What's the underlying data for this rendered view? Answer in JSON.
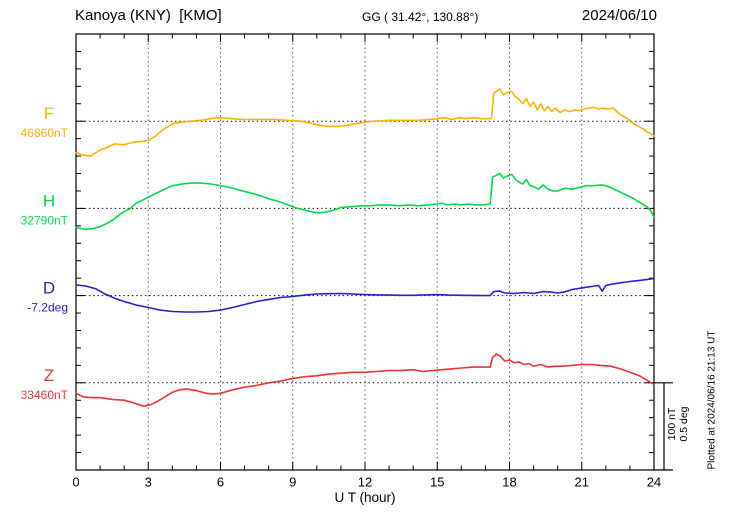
{
  "header": {
    "station": "Kanoya (KNY)  [KMO]",
    "coords": "GG ( 31.42°, 130.88°)",
    "date": "2024/06/10"
  },
  "axes": {
    "x_label": "U T (hour)",
    "x_ticks": [
      0,
      3,
      6,
      9,
      12,
      15,
      18,
      21,
      24
    ]
  },
  "scale_bar": {
    "line1": "100 nT",
    "line2": "0.5 deg"
  },
  "plotted_at": "Plotted at 2024/06/16 21:13 UT",
  "chart_data": {
    "type": "line",
    "title": "Kanoya (KNY) [KMO] magnetogram 2024/06/10",
    "xlabel": "U T (hour)",
    "x_range": [
      0,
      24
    ],
    "x_gridlines": [
      3,
      6,
      9,
      12,
      15,
      18,
      21
    ],
    "grid": "dotted vertical at 3h steps; dotted horizontal baseline per component",
    "legend_position": "left margin, one colored label per component",
    "scale_per_division": {
      "nT": 100,
      "deg": 0.5
    },
    "series": [
      {
        "name": "F",
        "unit": "nT",
        "color": "#FFB000",
        "base_label": "46860nT",
        "base_value": 46860,
        "points": [
          [
            0,
            -36
          ],
          [
            0.3,
            -39
          ],
          [
            0.6,
            -40
          ],
          [
            1,
            -33
          ],
          [
            1.3,
            -30
          ],
          [
            1.6,
            -26
          ],
          [
            2,
            -27
          ],
          [
            2.4,
            -24
          ],
          [
            2.8,
            -23
          ],
          [
            3,
            -22
          ],
          [
            3.3,
            -17
          ],
          [
            3.6,
            -10
          ],
          [
            4,
            -3
          ],
          [
            4.4,
            -1
          ],
          [
            4.8,
            0
          ],
          [
            5.2,
            1
          ],
          [
            5.6,
            3
          ],
          [
            6,
            4
          ],
          [
            6.4,
            3
          ],
          [
            7,
            2
          ],
          [
            7.6,
            2
          ],
          [
            8.2,
            2
          ],
          [
            8.8,
            1
          ],
          [
            9.3,
            0
          ],
          [
            9.7,
            -2
          ],
          [
            10,
            -4
          ],
          [
            10.4,
            -6
          ],
          [
            10.8,
            -6
          ],
          [
            11.2,
            -5
          ],
          [
            11.6,
            -3
          ],
          [
            12,
            -1
          ],
          [
            12.4,
            0
          ],
          [
            13,
            1
          ],
          [
            13.6,
            1
          ],
          [
            14.2,
            1
          ],
          [
            14.7,
            2
          ],
          [
            15,
            3
          ],
          [
            15.3,
            4
          ],
          [
            15.6,
            2
          ],
          [
            15.9,
            4
          ],
          [
            16.2,
            3
          ],
          [
            16.5,
            4
          ],
          [
            16.8,
            3
          ],
          [
            17.1,
            3
          ],
          [
            17.25,
            3
          ],
          [
            17.35,
            32
          ],
          [
            17.5,
            35
          ],
          [
            17.6,
            37
          ],
          [
            17.75,
            30
          ],
          [
            17.9,
            33
          ],
          [
            18.1,
            34
          ],
          [
            18.25,
            28
          ],
          [
            18.4,
            25
          ],
          [
            18.55,
            20
          ],
          [
            18.7,
            26
          ],
          [
            18.85,
            17
          ],
          [
            19,
            22
          ],
          [
            19.15,
            13
          ],
          [
            19.3,
            20
          ],
          [
            19.45,
            12
          ],
          [
            19.6,
            17
          ],
          [
            19.75,
            11
          ],
          [
            19.9,
            15
          ],
          [
            20.1,
            10
          ],
          [
            20.3,
            13
          ],
          [
            20.5,
            11
          ],
          [
            20.7,
            13
          ],
          [
            20.9,
            12
          ],
          [
            21.1,
            14
          ],
          [
            21.3,
            15
          ],
          [
            21.5,
            16
          ],
          [
            21.7,
            14
          ],
          [
            21.9,
            15
          ],
          [
            22.1,
            14
          ],
          [
            22.3,
            15
          ],
          [
            22.5,
            10
          ],
          [
            22.7,
            6
          ],
          [
            22.9,
            3
          ],
          [
            23.1,
            -2
          ],
          [
            23.3,
            -5
          ],
          [
            23.5,
            -8
          ],
          [
            23.7,
            -12
          ],
          [
            23.85,
            -14
          ],
          [
            24,
            -17
          ]
        ]
      },
      {
        "name": "H",
        "unit": "nT",
        "color": "#00DC45",
        "base_label": "32790nT",
        "base_value": 32790,
        "points": [
          [
            0,
            -22
          ],
          [
            0.2,
            -23
          ],
          [
            0.4,
            -24
          ],
          [
            0.7,
            -23
          ],
          [
            1,
            -21
          ],
          [
            1.3,
            -17
          ],
          [
            1.6,
            -12
          ],
          [
            1.9,
            -5
          ],
          [
            2.2,
            -1
          ],
          [
            2.5,
            6
          ],
          [
            2.8,
            10
          ],
          [
            3,
            13
          ],
          [
            3.3,
            17
          ],
          [
            3.6,
            21
          ],
          [
            4,
            26
          ],
          [
            4.4,
            28
          ],
          [
            4.8,
            29
          ],
          [
            5.2,
            29
          ],
          [
            5.6,
            28
          ],
          [
            6,
            26
          ],
          [
            6.4,
            24
          ],
          [
            6.8,
            21
          ],
          [
            7.2,
            18
          ],
          [
            7.6,
            15
          ],
          [
            8,
            11
          ],
          [
            8.4,
            8
          ],
          [
            8.8,
            4
          ],
          [
            9.2,
            0
          ],
          [
            9.5,
            -2
          ],
          [
            9.8,
            -4
          ],
          [
            10.1,
            -5
          ],
          [
            10.4,
            -4
          ],
          [
            10.7,
            -2
          ],
          [
            11,
            1
          ],
          [
            11.4,
            2
          ],
          [
            11.8,
            3
          ],
          [
            12.2,
            3
          ],
          [
            12.6,
            4
          ],
          [
            13,
            4
          ],
          [
            13.4,
            3
          ],
          [
            13.8,
            4
          ],
          [
            14.2,
            3
          ],
          [
            14.6,
            4
          ],
          [
            15,
            5
          ],
          [
            15.2,
            6
          ],
          [
            15.4,
            4
          ],
          [
            15.7,
            5
          ],
          [
            16,
            4
          ],
          [
            16.3,
            5
          ],
          [
            16.6,
            4
          ],
          [
            16.9,
            4
          ],
          [
            17.2,
            5
          ],
          [
            17.3,
            36
          ],
          [
            17.45,
            38
          ],
          [
            17.6,
            40
          ],
          [
            17.75,
            35
          ],
          [
            17.9,
            37
          ],
          [
            18.1,
            39
          ],
          [
            18.25,
            33
          ],
          [
            18.4,
            30
          ],
          [
            18.55,
            28
          ],
          [
            18.7,
            33
          ],
          [
            18.85,
            26
          ],
          [
            19,
            25
          ],
          [
            19.2,
            22
          ],
          [
            19.4,
            27
          ],
          [
            19.6,
            22
          ],
          [
            19.8,
            20
          ],
          [
            20,
            20
          ],
          [
            20.3,
            23
          ],
          [
            20.6,
            22
          ],
          [
            20.9,
            24
          ],
          [
            21.2,
            26
          ],
          [
            21.5,
            26
          ],
          [
            21.8,
            27
          ],
          [
            22,
            26
          ],
          [
            22.2,
            24
          ],
          [
            22.5,
            20
          ],
          [
            22.8,
            16
          ],
          [
            23.1,
            12
          ],
          [
            23.4,
            7
          ],
          [
            23.7,
            2
          ],
          [
            23.85,
            -2
          ],
          [
            24,
            -10
          ]
        ]
      },
      {
        "name": "D",
        "unit": "deg",
        "color": "#2222CC",
        "base_label": "-7.2deg",
        "base_value": -7.2,
        "points": [
          [
            0,
            0.061
          ],
          [
            0.4,
            0.055
          ],
          [
            0.8,
            0.04
          ],
          [
            1.2,
            0.01
          ],
          [
            1.6,
            -0.015
          ],
          [
            2,
            -0.034
          ],
          [
            2.5,
            -0.054
          ],
          [
            3,
            -0.068
          ],
          [
            3.5,
            -0.083
          ],
          [
            4,
            -0.091
          ],
          [
            4.5,
            -0.094
          ],
          [
            5,
            -0.094
          ],
          [
            5.5,
            -0.091
          ],
          [
            6,
            -0.083
          ],
          [
            6.5,
            -0.068
          ],
          [
            7,
            -0.051
          ],
          [
            7.5,
            -0.034
          ],
          [
            8,
            -0.022
          ],
          [
            8.5,
            -0.011
          ],
          [
            9,
            -0.005
          ],
          [
            9.5,
            0.003
          ],
          [
            10,
            0.009
          ],
          [
            10.5,
            0.011
          ],
          [
            11,
            0.012
          ],
          [
            11.5,
            0.009
          ],
          [
            12,
            0.006
          ],
          [
            12.5,
            0.004
          ],
          [
            13,
            0.003
          ],
          [
            13.5,
            0.002
          ],
          [
            14,
            0.002
          ],
          [
            14.5,
            0.004
          ],
          [
            15,
            0.006
          ],
          [
            15.5,
            0.003
          ],
          [
            16,
            0.002
          ],
          [
            16.5,
            0.001
          ],
          [
            17,
            0
          ],
          [
            17.2,
            0.001
          ],
          [
            17.35,
            0.023
          ],
          [
            17.6,
            0.026
          ],
          [
            17.8,
            0.015
          ],
          [
            18.2,
            0.012
          ],
          [
            18.6,
            0.018
          ],
          [
            19,
            0.012
          ],
          [
            19.4,
            0.023
          ],
          [
            19.7,
            0.021
          ],
          [
            20,
            0.015
          ],
          [
            20.3,
            0.021
          ],
          [
            20.6,
            0.035
          ],
          [
            21,
            0.044
          ],
          [
            21.4,
            0.052
          ],
          [
            21.7,
            0.058
          ],
          [
            21.85,
            0.025
          ],
          [
            22,
            0.058
          ],
          [
            22.3,
            0.067
          ],
          [
            22.7,
            0.075
          ],
          [
            23,
            0.081
          ],
          [
            23.4,
            0.087
          ],
          [
            23.7,
            0.092
          ],
          [
            24,
            0.098
          ]
        ]
      },
      {
        "name": "Z",
        "unit": "nT",
        "color": "#EE3333",
        "base_label": "33460nT",
        "base_value": 33460,
        "points": [
          [
            0,
            -12
          ],
          [
            0.3,
            -16
          ],
          [
            0.6,
            -17
          ],
          [
            1,
            -17
          ],
          [
            1.5,
            -19
          ],
          [
            2,
            -20
          ],
          [
            2.4,
            -23
          ],
          [
            2.8,
            -27
          ],
          [
            3.1,
            -25
          ],
          [
            3.4,
            -21
          ],
          [
            3.7,
            -16
          ],
          [
            4,
            -11
          ],
          [
            4.3,
            -8
          ],
          [
            4.6,
            -7
          ],
          [
            5,
            -9
          ],
          [
            5.4,
            -12
          ],
          [
            5.7,
            -13
          ],
          [
            6,
            -12
          ],
          [
            6.5,
            -8
          ],
          [
            7,
            -5
          ],
          [
            7.5,
            -3
          ],
          [
            8,
            0
          ],
          [
            8.5,
            2
          ],
          [
            9,
            5
          ],
          [
            9.5,
            7
          ],
          [
            10,
            8
          ],
          [
            10.5,
            10
          ],
          [
            11,
            11
          ],
          [
            11.5,
            12
          ],
          [
            12,
            12
          ],
          [
            12.5,
            13
          ],
          [
            13,
            14
          ],
          [
            13.5,
            14
          ],
          [
            14,
            15
          ],
          [
            14.4,
            13
          ],
          [
            14.8,
            14
          ],
          [
            15.2,
            15
          ],
          [
            15.6,
            16
          ],
          [
            16,
            17
          ],
          [
            16.5,
            18
          ],
          [
            17,
            18
          ],
          [
            17.2,
            18
          ],
          [
            17.3,
            29
          ],
          [
            17.45,
            33
          ],
          [
            17.6,
            31
          ],
          [
            17.8,
            25
          ],
          [
            18,
            26
          ],
          [
            18.2,
            23
          ],
          [
            18.4,
            24
          ],
          [
            18.6,
            21
          ],
          [
            18.8,
            22
          ],
          [
            19,
            19
          ],
          [
            19.3,
            21
          ],
          [
            19.6,
            18
          ],
          [
            19.9,
            19
          ],
          [
            20.2,
            19
          ],
          [
            20.6,
            20
          ],
          [
            21,
            21
          ],
          [
            21.4,
            21
          ],
          [
            21.8,
            20
          ],
          [
            22.2,
            19
          ],
          [
            22.6,
            16
          ],
          [
            23,
            12
          ],
          [
            23.4,
            8
          ],
          [
            23.7,
            3
          ],
          [
            24,
            -2
          ]
        ]
      }
    ]
  }
}
